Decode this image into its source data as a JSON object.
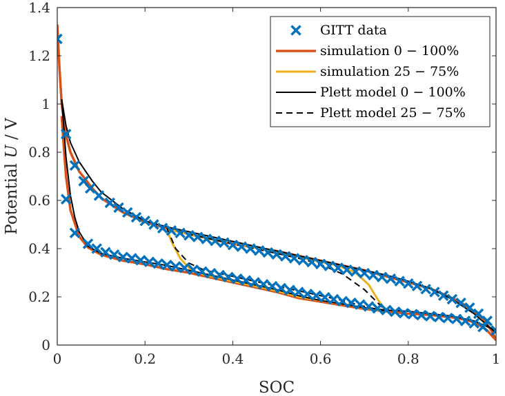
{
  "chart_data": {
    "type": "line",
    "xlabel": "SOC",
    "ylabel_prefix": "Potential ",
    "ylabel_var": "U",
    "ylabel_suffix": " / V",
    "xlim": [
      0,
      1
    ],
    "ylim": [
      0,
      1.4
    ],
    "xticks": [
      "0",
      "0.2",
      "0.4",
      "0.6",
      "0.8",
      "1"
    ],
    "yticks": [
      "0",
      "0.2",
      "0.4",
      "0.6",
      "0.8",
      "1",
      "1.2",
      "1.4"
    ],
    "grid": false,
    "legend_position": "top-right",
    "series": [
      {
        "name": "GITT data",
        "style": "marker-x",
        "color": "#0072BD",
        "x": [
          0.0,
          0.02,
          0.04,
          0.06,
          0.075,
          0.095,
          0.12,
          0.14,
          0.16,
          0.18,
          0.2,
          0.22,
          0.24,
          0.26,
          0.28,
          0.3,
          0.32,
          0.34,
          0.36,
          0.38,
          0.4,
          0.42,
          0.44,
          0.46,
          0.48,
          0.5,
          0.52,
          0.54,
          0.56,
          0.58,
          0.6,
          0.62,
          0.64,
          0.66,
          0.68,
          0.7,
          0.72,
          0.74,
          0.76,
          0.78,
          0.8,
          0.82,
          0.84,
          0.86,
          0.88,
          0.9,
          0.92,
          0.94,
          0.96,
          0.98,
          1.0,
          0.02,
          0.04,
          0.07,
          0.09,
          0.11,
          0.13,
          0.15,
          0.17,
          0.19,
          0.21,
          0.23,
          0.25,
          0.27,
          0.29,
          0.31,
          0.33,
          0.35,
          0.37,
          0.39,
          0.41,
          0.43,
          0.45,
          0.47,
          0.49,
          0.51,
          0.53,
          0.55,
          0.57,
          0.59,
          0.61,
          0.63,
          0.65,
          0.67,
          0.69,
          0.71,
          0.73,
          0.75,
          0.77,
          0.79,
          0.81,
          0.83,
          0.85,
          0.87,
          0.89,
          0.91,
          0.93,
          0.95,
          0.97
        ],
        "y": [
          1.27,
          0.875,
          0.745,
          0.68,
          0.65,
          0.62,
          0.59,
          0.57,
          0.55,
          0.53,
          0.515,
          0.5,
          0.485,
          0.475,
          0.465,
          0.455,
          0.448,
          0.44,
          0.432,
          0.425,
          0.415,
          0.408,
          0.4,
          0.392,
          0.384,
          0.376,
          0.368,
          0.36,
          0.352,
          0.344,
          0.336,
          0.328,
          0.32,
          0.312,
          0.305,
          0.298,
          0.29,
          0.282,
          0.275,
          0.265,
          0.255,
          0.245,
          0.232,
          0.22,
          0.205,
          0.19,
          0.175,
          0.155,
          0.13,
          0.1,
          0.06,
          0.605,
          0.465,
          0.42,
          0.4,
          0.385,
          0.375,
          0.365,
          0.36,
          0.352,
          0.345,
          0.338,
          0.332,
          0.326,
          0.32,
          0.312,
          0.305,
          0.298,
          0.29,
          0.282,
          0.275,
          0.268,
          0.26,
          0.252,
          0.244,
          0.236,
          0.228,
          0.22,
          0.212,
          0.205,
          0.198,
          0.19,
          0.182,
          0.175,
          0.168,
          0.16,
          0.152,
          0.145,
          0.138,
          0.132,
          0.128,
          0.124,
          0.12,
          0.116,
          0.112,
          0.108,
          0.1,
          0.09,
          0.075
        ]
      },
      {
        "name": "simulation 0 − 100%",
        "style": "solid",
        "color": "#D95319",
        "width": 3.5,
        "branches": [
          {
            "x": [
              0.0,
              0.005,
              0.01,
              0.02,
              0.03,
              0.05,
              0.08,
              0.1,
              0.15,
              0.2,
              0.25,
              0.3,
              0.35,
              0.4,
              0.45,
              0.5,
              0.55,
              0.6,
              0.65,
              0.7,
              0.75,
              0.8,
              0.85,
              0.9,
              0.93,
              0.95,
              0.97,
              0.98,
              0.99,
              1.0
            ],
            "y": [
              1.33,
              1.15,
              1.0,
              0.87,
              0.8,
              0.72,
              0.65,
              0.61,
              0.55,
              0.51,
              0.485,
              0.46,
              0.44,
              0.42,
              0.405,
              0.39,
              0.37,
              0.35,
              0.33,
              0.31,
              0.285,
              0.26,
              0.235,
              0.195,
              0.165,
              0.14,
              0.11,
              0.085,
              0.06,
              0.02
            ]
          },
          {
            "x": [
              0.01,
              0.015,
              0.02,
              0.03,
              0.05,
              0.07,
              0.1,
              0.15,
              0.2,
              0.25,
              0.3,
              0.35,
              0.4,
              0.45,
              0.5,
              0.55,
              0.6,
              0.65,
              0.7,
              0.75,
              0.8,
              0.85,
              0.9,
              0.93,
              0.95,
              0.97,
              0.98,
              0.99,
              1.0
            ],
            "y": [
              0.95,
              0.82,
              0.7,
              0.56,
              0.45,
              0.405,
              0.375,
              0.35,
              0.335,
              0.315,
              0.3,
              0.28,
              0.26,
              0.24,
              0.22,
              0.195,
              0.18,
              0.165,
              0.15,
              0.14,
              0.13,
              0.125,
              0.115,
              0.105,
              0.095,
              0.075,
              0.06,
              0.04,
              0.02
            ]
          }
        ]
      },
      {
        "name": "simulation 25 − 75%",
        "style": "solid",
        "color": "#EDB120",
        "width": 3,
        "branches": [
          {
            "x": [
              0.25,
              0.3,
              0.35,
              0.4,
              0.45,
              0.5,
              0.55,
              0.6,
              0.64,
              0.68,
              0.71,
              0.73,
              0.75
            ],
            "y": [
              0.48,
              0.46,
              0.44,
              0.425,
              0.405,
              0.385,
              0.365,
              0.345,
              0.33,
              0.3,
              0.25,
              0.19,
              0.14
            ]
          },
          {
            "x": [
              0.25,
              0.26,
              0.28,
              0.3,
              0.32,
              0.35,
              0.4,
              0.45,
              0.5,
              0.55,
              0.6,
              0.65,
              0.7,
              0.75
            ],
            "y": [
              0.48,
              0.43,
              0.36,
              0.32,
              0.3,
              0.285,
              0.265,
              0.245,
              0.225,
              0.2,
              0.185,
              0.17,
              0.155,
              0.14
            ]
          }
        ]
      },
      {
        "name": "Plett model 0 − 100%",
        "style": "solid",
        "color": "#000000",
        "width": 2,
        "branches": [
          {
            "x": [
              0.01,
              0.02,
              0.03,
              0.05,
              0.08,
              0.1,
              0.15,
              0.2,
              0.25,
              0.3,
              0.35,
              0.4,
              0.45,
              0.5,
              0.55,
              0.6,
              0.65,
              0.7,
              0.75,
              0.8,
              0.85,
              0.9,
              0.95,
              1.0
            ],
            "y": [
              1.02,
              0.91,
              0.84,
              0.76,
              0.68,
              0.635,
              0.565,
              0.515,
              0.49,
              0.47,
              0.45,
              0.43,
              0.41,
              0.39,
              0.37,
              0.35,
              0.33,
              0.31,
              0.29,
              0.265,
              0.235,
              0.19,
              0.13,
              0.05
            ]
          },
          {
            "x": [
              0.01,
              0.02,
              0.03,
              0.04,
              0.05,
              0.07,
              0.1,
              0.15,
              0.2,
              0.25,
              0.3,
              0.35,
              0.4,
              0.45,
              0.5,
              0.55,
              0.6,
              0.65,
              0.7,
              0.75,
              0.8,
              0.85,
              0.9,
              0.95,
              1.0
            ],
            "y": [
              1.02,
              0.78,
              0.62,
              0.53,
              0.47,
              0.41,
              0.38,
              0.36,
              0.345,
              0.33,
              0.31,
              0.29,
              0.27,
              0.25,
              0.23,
              0.205,
              0.185,
              0.17,
              0.155,
              0.145,
              0.14,
              0.13,
              0.12,
              0.1,
              0.06
            ]
          }
        ]
      },
      {
        "name": "Plett model 25 − 75%",
        "style": "dashed",
        "color": "#000000",
        "width": 2,
        "branches": [
          {
            "x": [
              0.25,
              0.3,
              0.35,
              0.4,
              0.45,
              0.5,
              0.55,
              0.6,
              0.65,
              0.7,
              0.75
            ],
            "y": [
              0.485,
              0.46,
              0.44,
              0.42,
              0.4,
              0.38,
              0.36,
              0.335,
              0.295,
              0.23,
              0.14
            ]
          },
          {
            "x": [
              0.25,
              0.27,
              0.3,
              0.33,
              0.36,
              0.4,
              0.45,
              0.5,
              0.55,
              0.6,
              0.65,
              0.7,
              0.75
            ],
            "y": [
              0.485,
              0.4,
              0.34,
              0.315,
              0.3,
              0.285,
              0.265,
              0.245,
              0.225,
              0.205,
              0.185,
              0.16,
              0.14
            ]
          }
        ]
      }
    ]
  }
}
